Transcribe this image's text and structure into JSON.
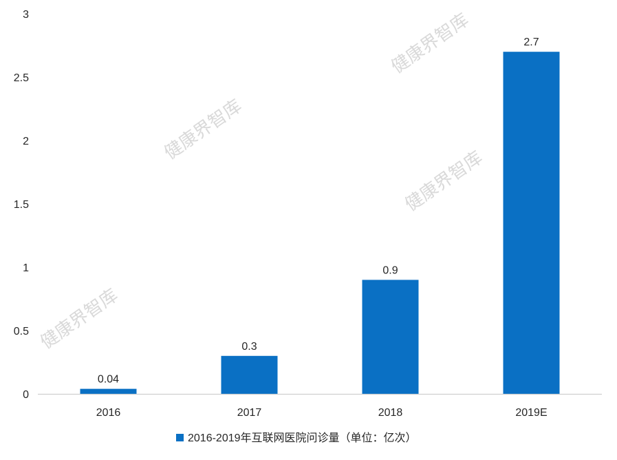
{
  "chart_data": {
    "type": "bar",
    "categories": [
      "2016",
      "2017",
      "2018",
      "2019E"
    ],
    "values": [
      0.04,
      0.3,
      0.9,
      2.7
    ],
    "data_labels": [
      "0.04",
      "0.3",
      "0.9",
      "2.7"
    ],
    "series": [
      {
        "name": "2016-2019年互联网医院问诊量（单位：亿次）",
        "values": [
          0.04,
          0.3,
          0.9,
          2.7
        ]
      }
    ],
    "title": "",
    "xlabel": "",
    "ylabel": "",
    "ylim": [
      0,
      3
    ],
    "yticks": [
      "0",
      "0.5",
      "1",
      "1.5",
      "2",
      "2.5",
      "3"
    ],
    "grid": false,
    "legend_position": "bottom-center",
    "bar_color": "#0a70c4"
  },
  "watermark": "健康界智库"
}
